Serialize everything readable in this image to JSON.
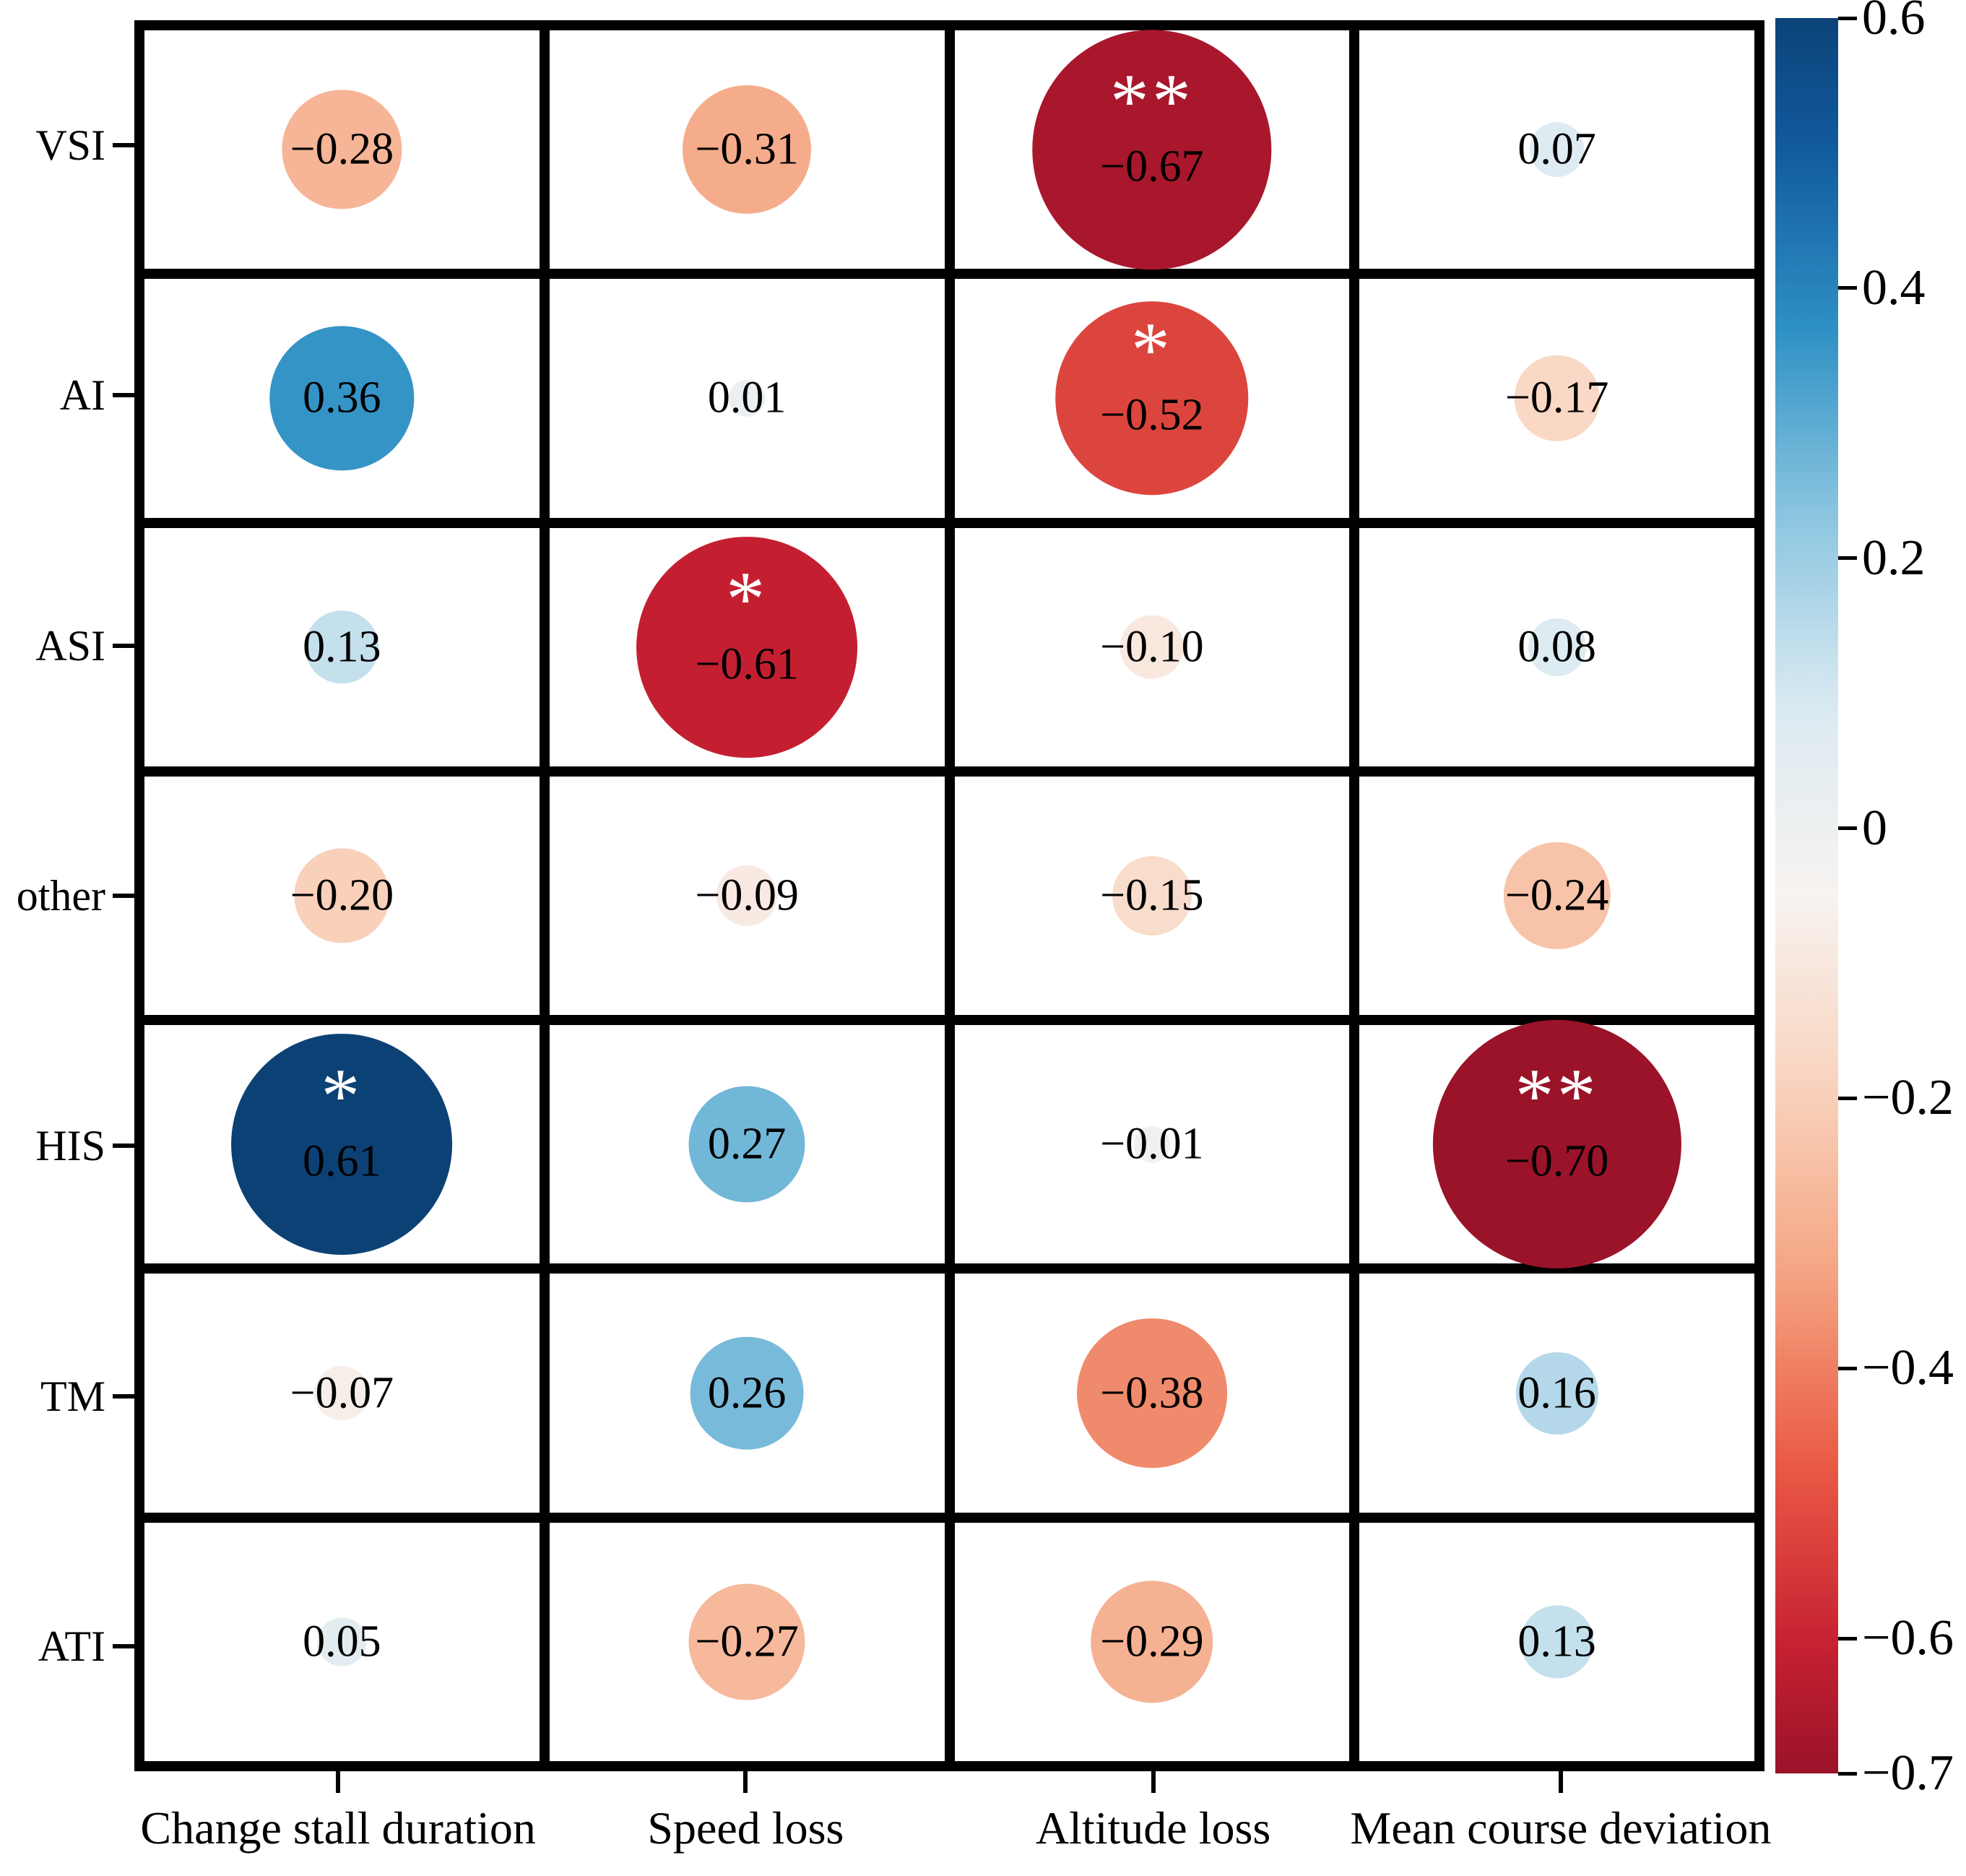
{
  "chart_data": {
    "type": "heatmap",
    "subtype": "correlation-bubble-matrix",
    "rows": [
      "VSI",
      "AI",
      "ASI",
      "other",
      "HIS",
      "TM",
      "ATI"
    ],
    "columns": [
      "Change stall duration",
      "Speed loss",
      "Altitude loss",
      "Mean course deviation"
    ],
    "values": [
      [
        -0.28,
        -0.31,
        -0.67,
        0.07
      ],
      [
        0.36,
        0.01,
        -0.52,
        -0.17
      ],
      [
        0.13,
        -0.61,
        -0.1,
        0.08
      ],
      [
        -0.2,
        -0.09,
        -0.15,
        -0.24
      ],
      [
        0.61,
        0.27,
        -0.01,
        -0.7
      ],
      [
        -0.07,
        0.26,
        -0.38,
        0.16
      ],
      [
        0.05,
        -0.27,
        -0.29,
        0.13
      ]
    ],
    "significance": [
      [
        "",
        "",
        "**",
        ""
      ],
      [
        "",
        "",
        "*",
        ""
      ],
      [
        "",
        "*",
        "",
        ""
      ],
      [
        "",
        "",
        "",
        ""
      ],
      [
        "*",
        "",
        "",
        "**"
      ],
      [
        "",
        "",
        "",
        ""
      ],
      [
        "",
        "",
        "",
        ""
      ]
    ],
    "colorbar": {
      "max": 0.6,
      "min": -0.7,
      "ticks": [
        0.6,
        0.4,
        0.2,
        0,
        -0.2,
        -0.4,
        -0.6,
        -0.7
      ],
      "tick_labels": [
        "0.6",
        "0.4",
        "0.2",
        "0",
        "−0.2",
        "−0.4",
        "−0.6",
        "−0.7"
      ],
      "legend_position": "right"
    },
    "color_scale": {
      "norm": [
        -0.75,
        0.65
      ],
      "stops_low_to_high": [
        "#830c25",
        "#c41f31",
        "#ea5a45",
        "#f4a582",
        "#f9d3be",
        "#f7f3f0",
        "#dbeaf2",
        "#8cc6e0",
        "#2e90c4",
        "#10589b",
        "#0a3866"
      ]
    },
    "bubble": {
      "base_radius_px": 23,
      "radius_per_unit_px": 213
    },
    "grid_on": true,
    "title": "",
    "xlabel": "",
    "ylabel": ""
  }
}
